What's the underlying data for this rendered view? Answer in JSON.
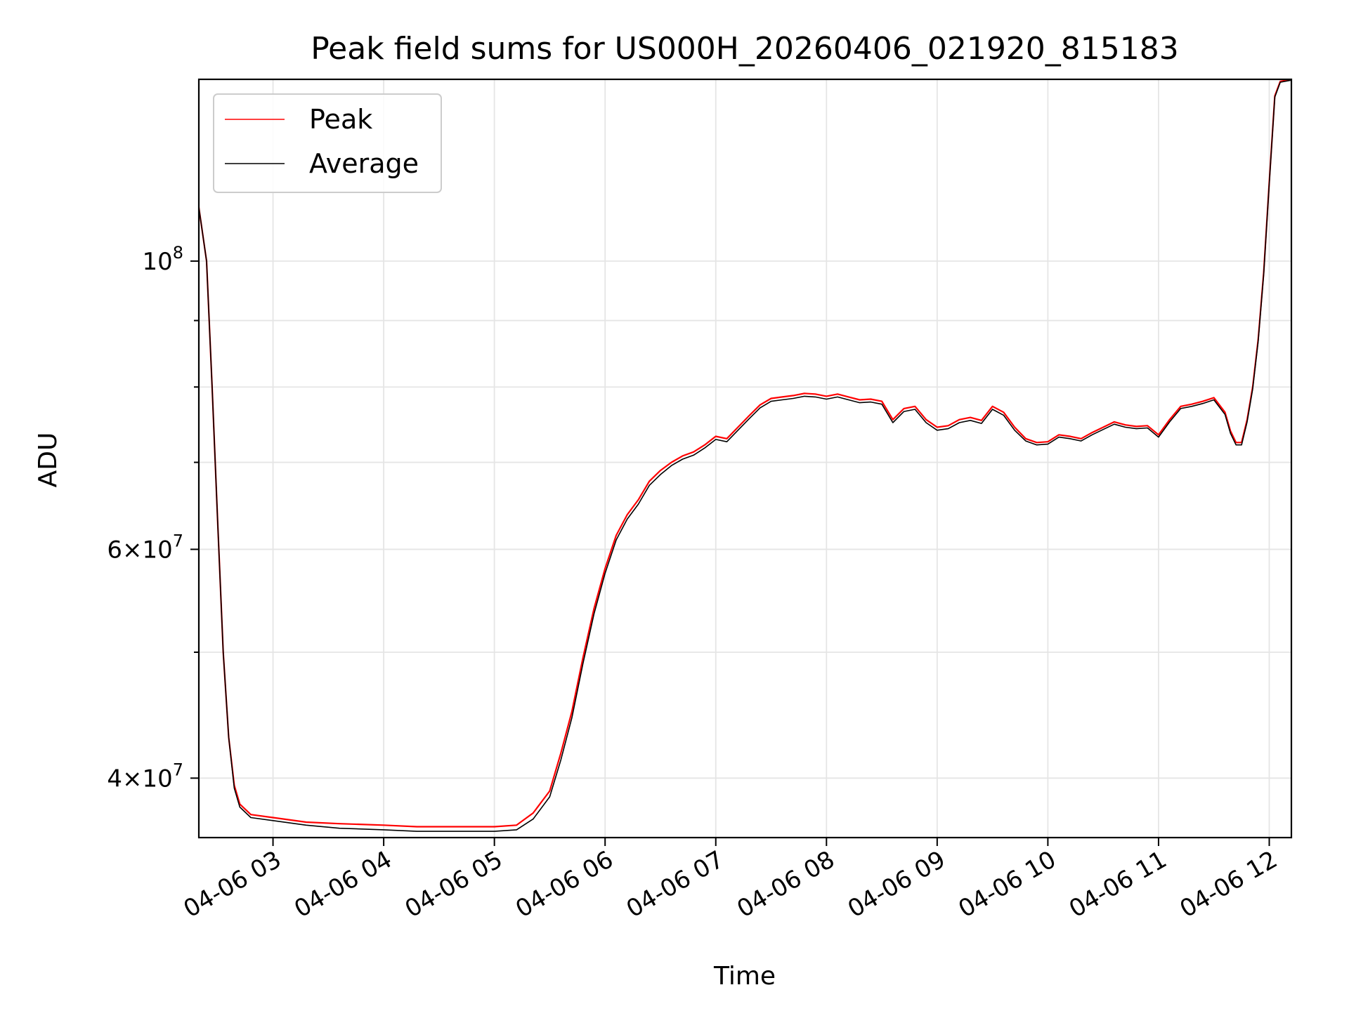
{
  "chart_data": {
    "type": "line",
    "title": "Peak field sums for US000H_20260406_021920_815183",
    "xlabel": "Time",
    "ylabel": "ADU",
    "yscale": "log",
    "grid": true,
    "legend_position": "top-left",
    "x_unit": "hours since 04-06 00:00",
    "xlim": [
      2.33,
      12.2
    ],
    "ylim": [
      36000000,
      138000000
    ],
    "x_ticks": [
      {
        "value": 3,
        "label": "04-06 03"
      },
      {
        "value": 4,
        "label": "04-06 04"
      },
      {
        "value": 5,
        "label": "04-06 05"
      },
      {
        "value": 6,
        "label": "04-06 06"
      },
      {
        "value": 7,
        "label": "04-06 07"
      },
      {
        "value": 8,
        "label": "04-06 08"
      },
      {
        "value": 9,
        "label": "04-06 09"
      },
      {
        "value": 10,
        "label": "04-06 10"
      },
      {
        "value": 11,
        "label": "04-06 11"
      },
      {
        "value": 12,
        "label": "04-06 12"
      }
    ],
    "y_major_ticks": [
      {
        "value": 100000000,
        "base": "10",
        "exp": "8",
        "coef": ""
      },
      {
        "value": 60000000,
        "base": "10",
        "exp": "7",
        "coef": "6"
      },
      {
        "value": 40000000,
        "base": "10",
        "exp": "7",
        "coef": "4"
      }
    ],
    "y_gridlines": [
      40000000,
      50000000,
      60000000,
      70000000,
      80000000,
      90000000,
      100000000
    ],
    "y_minor_ticks": [
      50000000,
      70000000,
      80000000,
      90000000
    ],
    "series": [
      {
        "name": "Peak",
        "color": "#ff0000",
        "x": [
          2.33,
          2.4,
          2.45,
          2.5,
          2.55,
          2.6,
          2.65,
          2.7,
          2.8,
          3.0,
          3.3,
          3.6,
          4.0,
          4.3,
          4.6,
          5.0,
          5.2,
          5.35,
          5.5,
          5.6,
          5.7,
          5.8,
          5.9,
          6.0,
          6.1,
          6.2,
          6.3,
          6.4,
          6.5,
          6.6,
          6.7,
          6.8,
          6.9,
          7.0,
          7.1,
          7.2,
          7.3,
          7.4,
          7.5,
          7.6,
          7.7,
          7.8,
          7.9,
          8.0,
          8.1,
          8.2,
          8.3,
          8.4,
          8.5,
          8.6,
          8.7,
          8.8,
          8.9,
          9.0,
          9.1,
          9.2,
          9.3,
          9.4,
          9.5,
          9.6,
          9.7,
          9.8,
          9.9,
          10.0,
          10.1,
          10.2,
          10.3,
          10.4,
          10.5,
          10.6,
          10.7,
          10.8,
          10.9,
          11.0,
          11.1,
          11.2,
          11.3,
          11.4,
          11.5,
          11.6,
          11.65,
          11.7,
          11.75,
          11.8,
          11.85,
          11.9,
          11.95,
          12.0,
          12.05,
          12.1,
          12.2
        ],
        "values": [
          110000000,
          100000000,
          80000000,
          63000000,
          50000000,
          43000000,
          39500000,
          38200000,
          37500000,
          37300000,
          37000000,
          36900000,
          36800000,
          36700000,
          36700000,
          36700000,
          36800000,
          37600000,
          39100000,
          41800000,
          45000000,
          49500000,
          54000000,
          58000000,
          61500000,
          63800000,
          65500000,
          67700000,
          69000000,
          70000000,
          70800000,
          71300000,
          72200000,
          73300000,
          73000000,
          74500000,
          76000000,
          77500000,
          78400000,
          78600000,
          78800000,
          79100000,
          79000000,
          78700000,
          79000000,
          78600000,
          78200000,
          78300000,
          78000000,
          75500000,
          77000000,
          77300000,
          75500000,
          74500000,
          74700000,
          75500000,
          75800000,
          75400000,
          77300000,
          76500000,
          74500000,
          73000000,
          72500000,
          72600000,
          73500000,
          73300000,
          73000000,
          73800000,
          74500000,
          75200000,
          74800000,
          74600000,
          74700000,
          73500000,
          75500000,
          77300000,
          77600000,
          78000000,
          78500000,
          76500000,
          74000000,
          72500000,
          72500000,
          75500000,
          80000000,
          87000000,
          98000000,
          115000000,
          134000000,
          137500000,
          138000000
        ]
      },
      {
        "name": "Average",
        "color": "#000000",
        "x": [
          2.33,
          2.4,
          2.45,
          2.5,
          2.55,
          2.6,
          2.65,
          2.7,
          2.8,
          3.0,
          3.3,
          3.6,
          4.0,
          4.3,
          4.6,
          5.0,
          5.2,
          5.35,
          5.5,
          5.6,
          5.7,
          5.8,
          5.9,
          6.0,
          6.1,
          6.2,
          6.3,
          6.4,
          6.5,
          6.6,
          6.7,
          6.8,
          6.9,
          7.0,
          7.1,
          7.2,
          7.3,
          7.4,
          7.5,
          7.6,
          7.7,
          7.8,
          7.9,
          8.0,
          8.1,
          8.2,
          8.3,
          8.4,
          8.5,
          8.6,
          8.7,
          8.8,
          8.9,
          9.0,
          9.1,
          9.2,
          9.3,
          9.4,
          9.5,
          9.6,
          9.7,
          9.8,
          9.9,
          10.0,
          10.1,
          10.2,
          10.3,
          10.4,
          10.5,
          10.6,
          10.7,
          10.8,
          10.9,
          11.0,
          11.1,
          11.2,
          11.3,
          11.4,
          11.5,
          11.6,
          11.65,
          11.7,
          11.75,
          11.8,
          11.85,
          11.9,
          11.95,
          12.0,
          12.05,
          12.1,
          12.2
        ],
        "values": [
          110000000,
          100000000,
          80000000,
          63000000,
          50000000,
          43000000,
          39300000,
          38000000,
          37300000,
          37100000,
          36800000,
          36600000,
          36500000,
          36400000,
          36400000,
          36400000,
          36500000,
          37200000,
          38700000,
          41300000,
          44500000,
          49000000,
          53500000,
          57500000,
          61000000,
          63300000,
          65000000,
          67200000,
          68500000,
          69600000,
          70400000,
          70900000,
          71800000,
          72900000,
          72600000,
          74100000,
          75600000,
          77100000,
          78000000,
          78200000,
          78400000,
          78700000,
          78600000,
          78300000,
          78600000,
          78200000,
          77800000,
          77900000,
          77600000,
          75100000,
          76600000,
          76900000,
          75100000,
          74100000,
          74300000,
          75100000,
          75400000,
          75000000,
          76900000,
          76100000,
          74100000,
          72700000,
          72200000,
          72300000,
          73200000,
          73000000,
          72700000,
          73500000,
          74200000,
          74900000,
          74500000,
          74300000,
          74400000,
          73200000,
          75200000,
          77000000,
          77300000,
          77700000,
          78200000,
          76200000,
          73700000,
          72200000,
          72200000,
          75200000,
          79700000,
          86700000,
          97700000,
          114700000,
          133700000,
          137300000,
          137800000
        ]
      }
    ]
  }
}
